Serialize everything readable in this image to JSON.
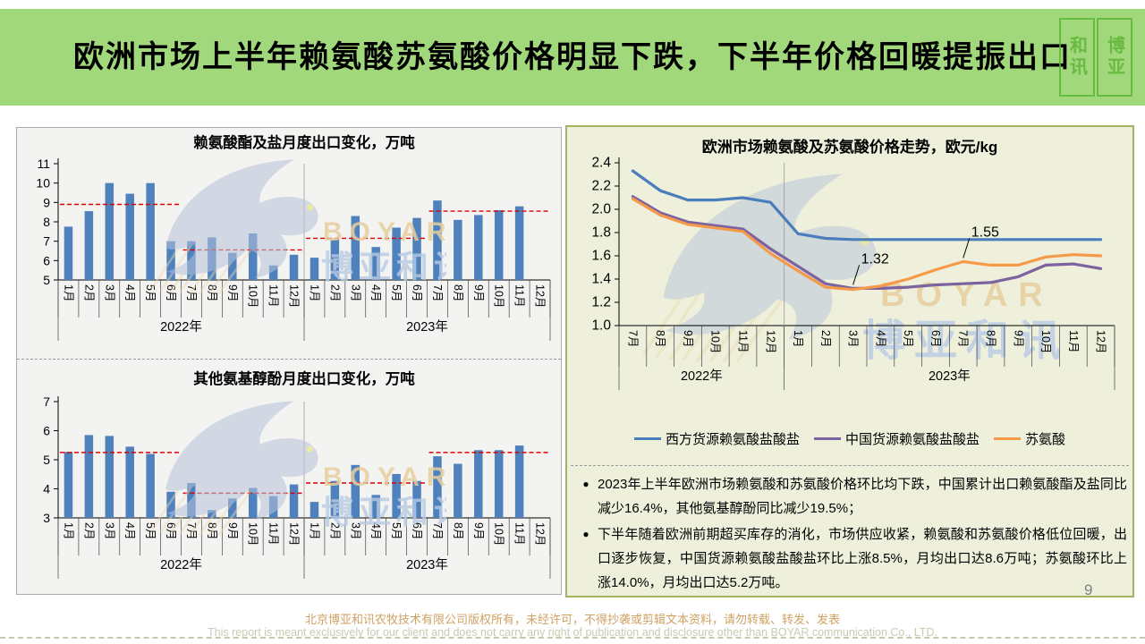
{
  "slide": {
    "title": "欧洲市场上半年赖氨酸苏氨酸价格明显下跌，下半年价格回暖提振出口",
    "page_number": "9",
    "footer_cn": "北京博亚和讯农牧技术有限公司版权所有，未经许可，不得抄袭或剪辑文本资料，请勿转载、转发、发表",
    "footer_en": "This report is meant exclusively for our client and does not carry any right of publication and disclosure other than BOYAR communication Co., LTD."
  },
  "seal": {
    "left_text": "和讯",
    "right_text": "博亚"
  },
  "watermark": {
    "brand_en": "BOYAR",
    "brand_cn": "博亚和讯"
  },
  "colors": {
    "title_band": "#a1d87b",
    "bar_blue": "#4f81bd",
    "avg_line_red": "#e00000",
    "right_panel_bg": "#eef0db",
    "right_panel_border": "#a9b165"
  },
  "bullets": {
    "items": [
      "2023年上半年欧洲市场赖氨酸和苏氨酸价格环比均下跌，中国累计出口赖氨酸酯及盐同比减少16.4%，其他氨基醇酚同比减少19.5%；",
      "下半年随着欧洲前期超买库存的消化，市场供应收紧，赖氨酸和苏氨酸价格低位回暖，出口逐步恢复，中国货源赖氨酸盐酸盐环比上涨8.5%，月均出口达8.6万吨；苏氨酸环比上涨14.0%，月均出口达5.2万吨。"
    ]
  },
  "chart_data": [
    {
      "id": "lysine-exports",
      "type": "bar",
      "title": "赖氨酸酯及盐月度出口变化，万吨",
      "ylim": [
        5,
        11
      ],
      "ytick_step": 1,
      "ydecimals": 0,
      "grid": false,
      "categories": [
        "1月",
        "2月",
        "3月",
        "4月",
        "5月",
        "6月",
        "7月",
        "8月",
        "9月",
        "10月",
        "11月",
        "12月",
        "1月",
        "2月",
        "3月",
        "4月",
        "5月",
        "6月",
        "7月",
        "8月",
        "9月",
        "10月",
        "11月",
        "12月"
      ],
      "year_groups": [
        {
          "label": "2022年",
          "span": 12
        },
        {
          "label": "2023年",
          "span": 12
        }
      ],
      "values": [
        7.75,
        8.55,
        10.0,
        9.45,
        10.0,
        7.0,
        7.0,
        7.2,
        6.4,
        7.4,
        5.75,
        6.3,
        6.15,
        7.1,
        8.3,
        6.7,
        7.7,
        8.2,
        9.1,
        8.1,
        8.35,
        8.6,
        8.8,
        null
      ],
      "avg_lines": [
        {
          "from": 0,
          "to": 5,
          "value": 8.9
        },
        {
          "from": 6,
          "to": 11,
          "value": 6.55
        },
        {
          "from": 12,
          "to": 17,
          "value": 7.15
        },
        {
          "from": 18,
          "to": 23,
          "value": 8.55
        }
      ],
      "bar_color": "#4f81bd",
      "avg_color": "#e00000"
    },
    {
      "id": "other-amino-exports",
      "type": "bar",
      "title": "其他氨基醇酚月度出口变化，万吨",
      "ylim": [
        3,
        7
      ],
      "ytick_step": 1,
      "ydecimals": 0,
      "grid": false,
      "categories": [
        "1月",
        "2月",
        "3月",
        "4月",
        "5月",
        "6月",
        "7月",
        "8月",
        "9月",
        "10月",
        "11月",
        "12月",
        "1月",
        "2月",
        "3月",
        "4月",
        "5月",
        "6月",
        "7月",
        "8月",
        "9月",
        "10月",
        "11月",
        "12月"
      ],
      "year_groups": [
        {
          "label": "2022年",
          "span": 12
        },
        {
          "label": "2023年",
          "span": 12
        }
      ],
      "values": [
        5.27,
        5.85,
        5.82,
        5.45,
        5.2,
        3.9,
        4.2,
        3.27,
        3.67,
        4.03,
        3.75,
        4.15,
        3.55,
        4.27,
        4.82,
        3.79,
        4.51,
        4.27,
        5.12,
        4.86,
        5.33,
        5.33,
        5.49,
        null
      ],
      "avg_lines": [
        {
          "from": 0,
          "to": 5,
          "value": 5.25
        },
        {
          "from": 6,
          "to": 11,
          "value": 3.85
        },
        {
          "from": 12,
          "to": 17,
          "value": 4.2
        },
        {
          "from": 18,
          "to": 23,
          "value": 5.25
        }
      ],
      "bar_color": "#4f81bd",
      "avg_color": "#e00000"
    },
    {
      "id": "price-trend",
      "type": "line",
      "title": "欧洲市场赖氨酸及苏氨酸价格走势，欧元/kg",
      "ylim": [
        1.0,
        2.4
      ],
      "ytick_step": 0.2,
      "ydecimals": 1,
      "grid": false,
      "legend_position": "bottom",
      "categories": [
        "7月",
        "8月",
        "9月",
        "10月",
        "11月",
        "12月",
        "1月",
        "2月",
        "3月",
        "4月",
        "5月",
        "6月",
        "7月",
        "8月",
        "9月",
        "10月",
        "11月",
        "12月"
      ],
      "year_groups": [
        {
          "label": "2022年",
          "span": 6
        },
        {
          "label": "2023年",
          "span": 12
        }
      ],
      "series": [
        {
          "name": "西方货源赖氨酸盐酸盐",
          "color": "#4a7dbb",
          "values": [
            2.33,
            2.16,
            2.08,
            2.08,
            2.1,
            2.06,
            1.79,
            1.75,
            1.74,
            1.74,
            1.74,
            1.74,
            1.74,
            1.74,
            1.74,
            1.74,
            1.74,
            1.74
          ]
        },
        {
          "name": "中国货源赖氨酸盐酸盐",
          "color": "#7d62a0",
          "values": [
            2.11,
            1.97,
            1.89,
            1.86,
            1.83,
            1.66,
            1.51,
            1.36,
            1.32,
            1.32,
            1.33,
            1.35,
            1.36,
            1.37,
            1.42,
            1.52,
            1.53,
            1.49
          ]
        },
        {
          "name": "苏氨酸",
          "color": "#f59a49",
          "values": [
            2.09,
            1.95,
            1.87,
            1.84,
            1.81,
            1.62,
            1.47,
            1.33,
            1.31,
            1.34,
            1.4,
            1.48,
            1.55,
            1.52,
            1.52,
            1.59,
            1.61,
            1.6
          ]
        }
      ],
      "annotations": [
        {
          "text": "1.32",
          "series": 1,
          "index": 8
        },
        {
          "text": "1.55",
          "series": 2,
          "index": 12
        }
      ]
    }
  ]
}
